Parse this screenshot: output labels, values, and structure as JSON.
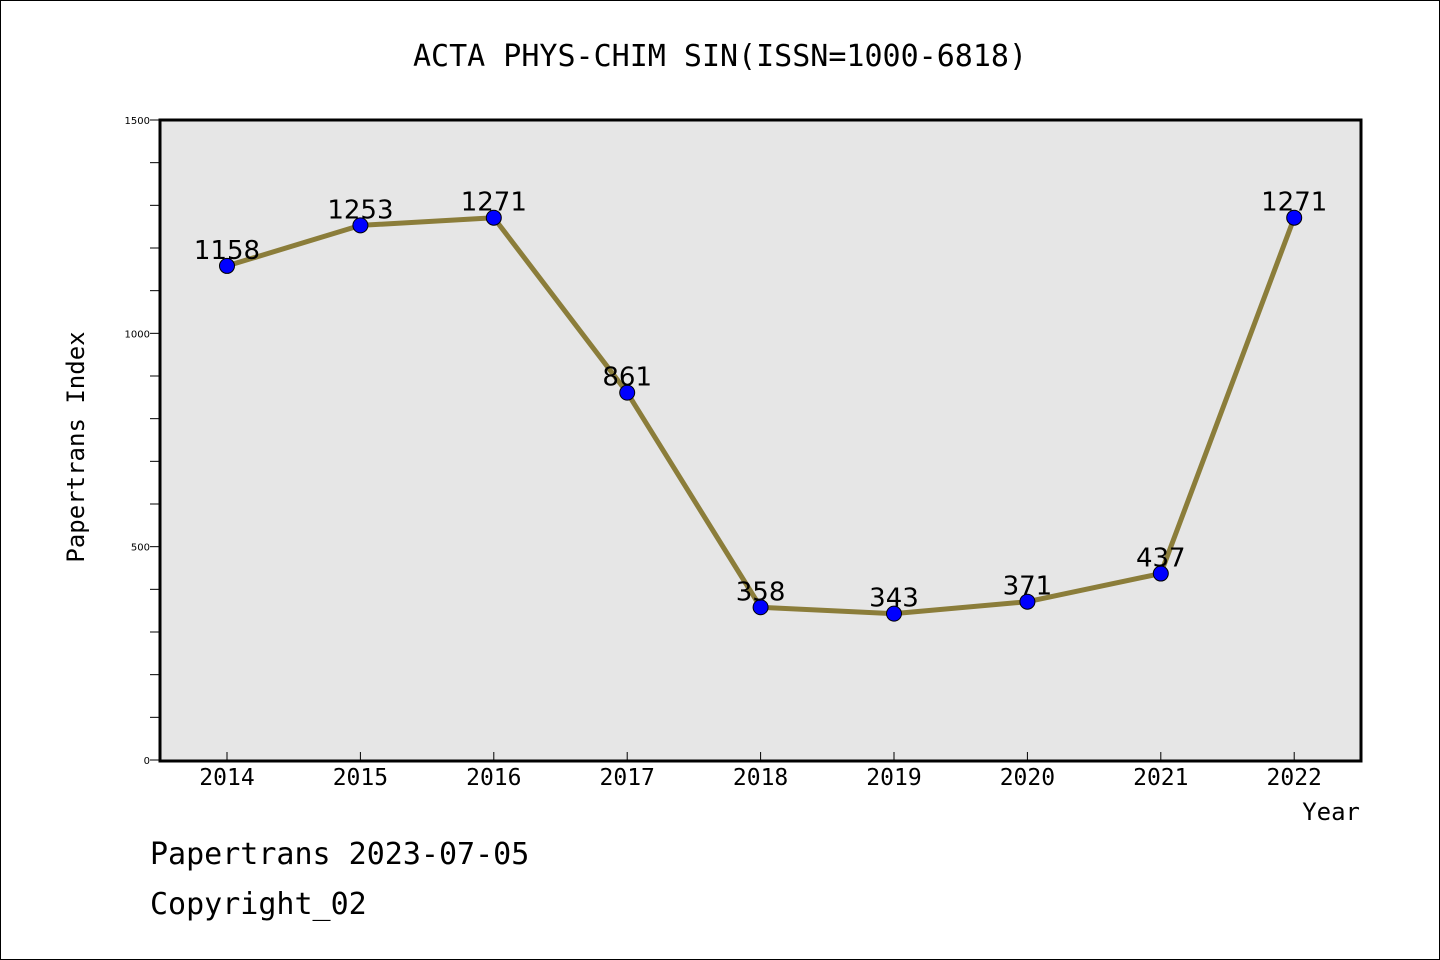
{
  "chart_data": {
    "type": "line",
    "title": "ACTA PHYS-CHIM SIN(ISSN=1000-6818)",
    "xlabel": "Year",
    "ylabel": "Papertrans Index",
    "x": [
      "2014",
      "2015",
      "2016",
      "2017",
      "2018",
      "2019",
      "2020",
      "2021",
      "2022"
    ],
    "values": [
      1158,
      1253,
      1271,
      861,
      358,
      343,
      371,
      437,
      1271
    ],
    "data_labels": [
      "1158",
      "1253",
      "1271",
      "861",
      "358",
      "343",
      "371",
      "437",
      "1271"
    ],
    "ylim": [
      0,
      1500
    ],
    "yticks": [
      "0",
      "500",
      "1000",
      "1500"
    ],
    "grid": false,
    "colors": {
      "line": "#8b7d3a",
      "marker": "#0000ff",
      "plot_bg": "#e6e6e6"
    }
  },
  "footer": {
    "line1": "Papertrans 2023-07-05",
    "line2": "Copyright_02"
  }
}
